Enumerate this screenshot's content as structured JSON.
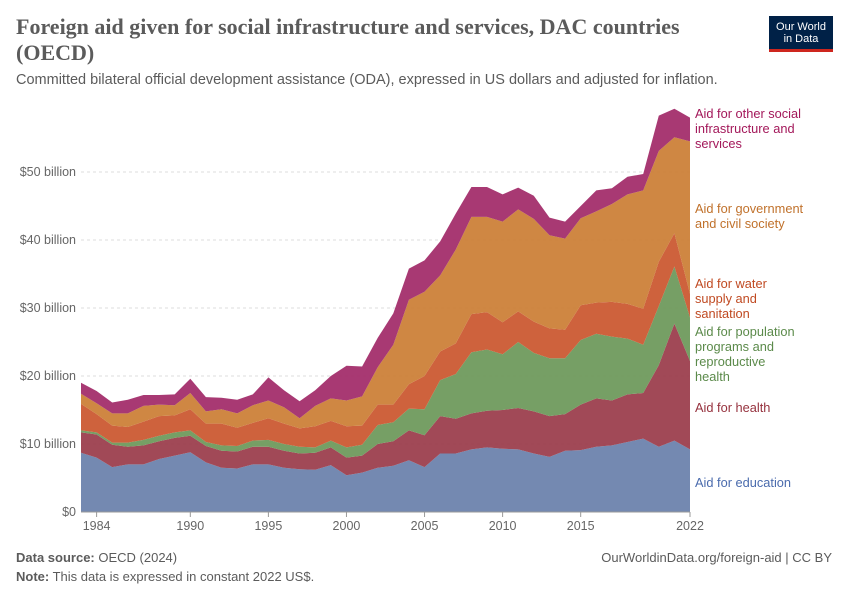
{
  "header": {
    "title": "Foreign aid given for social infrastructure and services, DAC countries (OECD)",
    "subtitle": "Committed bilateral official development assistance (ODA), expressed in US dollars and adjusted for inflation."
  },
  "logo": {
    "line1": "Our World",
    "line2": "in Data"
  },
  "footer": {
    "source_label": "Data source:",
    "source_value": " OECD (2024)",
    "note_label": "Note:",
    "note_value": " This data is expressed in constant 2022 US$.",
    "url": "OurWorldinData.org/foreign-aid | CC BY"
  },
  "chart_data": {
    "type": "area",
    "stacked": true,
    "x": [
      1983,
      1984,
      1985,
      1986,
      1987,
      1988,
      1989,
      1990,
      1991,
      1992,
      1993,
      1994,
      1995,
      1996,
      1997,
      1998,
      1999,
      2000,
      2001,
      2002,
      2003,
      2004,
      2005,
      2006,
      2007,
      2008,
      2009,
      2010,
      2011,
      2012,
      2013,
      2014,
      2015,
      2016,
      2017,
      2018,
      2019,
      2020,
      2021,
      2022
    ],
    "xticks": [
      1984,
      1990,
      1995,
      2000,
      2005,
      2010,
      2015,
      2022
    ],
    "yticks": [
      {
        "value": 0,
        "label": "$0"
      },
      {
        "value": 10,
        "label": "$10 billion"
      },
      {
        "value": 20,
        "label": "$20 billion"
      },
      {
        "value": 30,
        "label": "$30 billion"
      },
      {
        "value": 40,
        "label": "$40 billion"
      },
      {
        "value": 50,
        "label": "$50 billion"
      }
    ],
    "ylim": [
      0,
      60
    ],
    "grid": true,
    "legend_position": "right, inline labels",
    "series": [
      {
        "name": "Aid for education",
        "color": "#6d83ad",
        "values": [
          8.7,
          8,
          6.6,
          7,
          7,
          7.8,
          8.3,
          8.8,
          7.3,
          6.5,
          6.4,
          7,
          7,
          6.5,
          6.3,
          6.2,
          6.9,
          5.4,
          5.8,
          6.5,
          6.8,
          7.6,
          6.6,
          8.6,
          8.6,
          9.2,
          9.5,
          9.3,
          9.2,
          8.6,
          8.1,
          9,
          9.1,
          9.6,
          9.8,
          10.3,
          10.8,
          9.6,
          10.5,
          9.2
        ]
      },
      {
        "name": "Aid for health",
        "color": "#9c3f4e",
        "values": [
          3,
          3.4,
          3.3,
          2.6,
          2.8,
          2.6,
          2.6,
          2.4,
          2.4,
          2.5,
          2.5,
          2.6,
          2.6,
          2.5,
          2.3,
          2.5,
          2.6,
          2.6,
          2.5,
          3.5,
          3.6,
          4.4,
          4.7,
          5.5,
          5.1,
          5.3,
          5.4,
          5.7,
          6.1,
          6.2,
          6,
          5.4,
          6.7,
          7.1,
          6.6,
          7,
          6.7,
          12,
          17.2,
          13
        ]
      },
      {
        "name": "Aid for population programs and reproductive health",
        "color": "#6f9a5d",
        "values": [
          0.3,
          0.3,
          0.3,
          0.6,
          0.8,
          0.8,
          0.8,
          0.8,
          0.6,
          0.8,
          0.8,
          0.9,
          1,
          1,
          1,
          0.8,
          1,
          1.5,
          1.6,
          2.8,
          2.8,
          3.2,
          3.8,
          5.3,
          6.6,
          9,
          9,
          8.2,
          9.7,
          8.6,
          8.5,
          8.2,
          9.5,
          9.5,
          9.4,
          8.2,
          7.1,
          8.7,
          8.4,
          6.4
        ]
      },
      {
        "name": "Aid for water supply and sanitation",
        "color": "#cb5a33",
        "values": [
          3.9,
          2.7,
          2.5,
          2.3,
          2.7,
          2.9,
          2.5,
          3.1,
          2.7,
          3.2,
          2.7,
          2.6,
          3.2,
          3,
          2.7,
          3.1,
          2.9,
          3.1,
          2.8,
          3,
          2.6,
          3.6,
          4.9,
          4.2,
          4.5,
          5.6,
          5.5,
          4.7,
          4.5,
          4.6,
          4.4,
          4.2,
          5.1,
          4.6,
          5.1,
          5.1,
          5.3,
          6.5,
          4.9,
          3.5
        ]
      },
      {
        "name": "Aid for government and civil society",
        "color": "#cc8139",
        "values": [
          1.5,
          1.6,
          1.8,
          2,
          2.3,
          1.7,
          1.5,
          2.4,
          1.8,
          2.1,
          2.1,
          2.6,
          2.6,
          2.4,
          1.5,
          3,
          3.3,
          3.8,
          4.3,
          5.5,
          8.8,
          12.4,
          12.4,
          11.2,
          13.8,
          14.3,
          14,
          14.8,
          15,
          15.1,
          13.7,
          13.4,
          12.8,
          13.4,
          14.4,
          16.1,
          17.4,
          16.3,
          14.1,
          22.4
        ]
      },
      {
        "name": "Aid for other social infrastructure and services",
        "color": "#a32e6b",
        "values": [
          1.6,
          1.8,
          1.6,
          2,
          1.6,
          1.4,
          1.6,
          2.1,
          2.1,
          1.7,
          2,
          1.6,
          3.4,
          2.5,
          2.5,
          2.3,
          3.3,
          5.1,
          4.4,
          4.3,
          4.6,
          4.6,
          4.6,
          5,
          5.3,
          4.4,
          4.4,
          4,
          3.2,
          3.4,
          2.6,
          2.5,
          1.8,
          3.1,
          2.3,
          2.6,
          2.4,
          5.2,
          4.2,
          3.5
        ]
      }
    ]
  }
}
